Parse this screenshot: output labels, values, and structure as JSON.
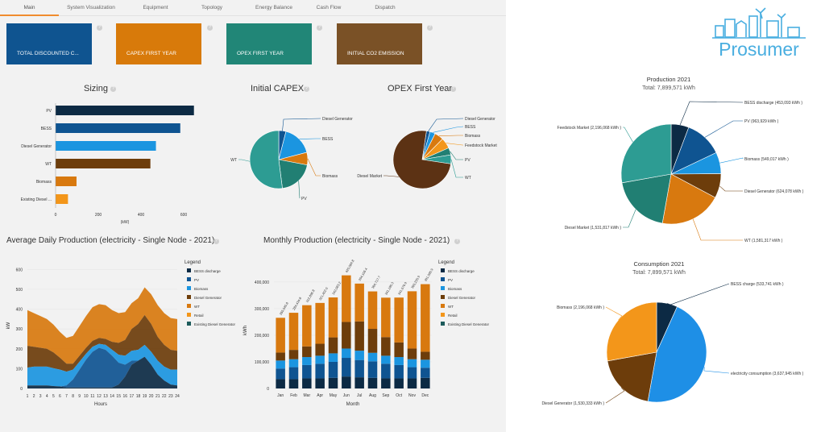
{
  "tabs": [
    "Main",
    "System Visualization",
    "Equipment",
    "Topology",
    "Energy Balance",
    "Cash Flow",
    "Dispatch"
  ],
  "kpis": [
    {
      "label": "TOTAL DISCOUNTED C...",
      "color": "#0f5490"
    },
    {
      "label": "CAPEX FIRST YEAR",
      "color": "#d87a0a"
    },
    {
      "label": "OPEX FIRST YEAR",
      "color": "#218677"
    },
    {
      "label": "INITIAL CO2 EMISSION",
      "color": "#7a5126"
    }
  ],
  "help_glyph": "?",
  "brand": {
    "name": "Prosumer",
    "logo_icon": "city-skyline-logo-icon"
  },
  "colors": {
    "bess": "#0c2a44",
    "pv": "#0f5491",
    "biomass": "#1b95e0",
    "diesel": "#6d3d0b",
    "wt": "#d8790f",
    "retail": "#f3961a",
    "existing_diesel": "#1d5b5b",
    "diesel_market": "#5c3214",
    "feedstock": "#2d9c93",
    "teal": "#217f73",
    "consumption": "#1e8fe6",
    "bess_charge": "#0c2a44"
  },
  "sizing": {
    "title": "Sizing",
    "categories": [
      "PV",
      "BESS",
      "Diesel Generator",
      "WT",
      "Biomass",
      "Existing Diesel ..."
    ],
    "values": [
      648,
      584,
      470,
      444,
      98,
      58
    ],
    "bar_colors": [
      "#0c2a44",
      "#0f5491",
      "#1b95e0",
      "#6d3d0b",
      "#d8790f",
      "#f3961a"
    ],
    "xticks": [
      "0",
      "200",
      "400",
      "600"
    ],
    "xlabel": "(kW)"
  },
  "initial_capex": {
    "title": "Initial CAPEX",
    "slices": [
      {
        "label": "Diesel Generator",
        "value": 4,
        "color": "#0f5491"
      },
      {
        "label": "BESS",
        "value": 17,
        "color": "#1b95e0"
      },
      {
        "label": "Biomass",
        "value": 7,
        "color": "#d8790f"
      },
      {
        "label": "PV",
        "value": 20,
        "color": "#217f73"
      },
      {
        "label": "WT",
        "value": 52,
        "color": "#2d9c93"
      }
    ]
  },
  "opex_first_year": {
    "title": "OPEX First Year",
    "slices": [
      {
        "label": "Diesel Generator",
        "value": 2,
        "color": "#0f5491"
      },
      {
        "label": "BESS",
        "value": 3,
        "color": "#1b95e0"
      },
      {
        "label": "Biomass",
        "value": 5,
        "color": "#d8790f"
      },
      {
        "label": "Feedstock Market",
        "value": 6,
        "color": "#f3961a"
      },
      {
        "label": "PV",
        "value": 4,
        "color": "#217f73"
      },
      {
        "label": "WT",
        "value": 5,
        "color": "#2d9c93"
      },
      {
        "label": "Diesel Market",
        "value": 75,
        "color": "#5c3214"
      }
    ]
  },
  "avg_daily": {
    "title": "Average Daily Production (electricity - Single Node - 2021)",
    "ylabel": "kW",
    "xlabel": "Hours",
    "ylim": [
      0,
      650
    ],
    "yticks": [
      "0",
      "100",
      "200",
      "300",
      "400",
      "500",
      "600"
    ],
    "hours": [
      "1",
      "2",
      "3",
      "4",
      "5",
      "6",
      "7",
      "8",
      "9",
      "10",
      "11",
      "12",
      "13",
      "14",
      "15",
      "16",
      "17",
      "18",
      "19",
      "20",
      "21",
      "22",
      "23",
      "24"
    ],
    "legend_title": "Legend",
    "series": [
      {
        "name": "BESS discharge",
        "color": "#0c2a44",
        "values": [
          15,
          15,
          15,
          15,
          12,
          10,
          5,
          5,
          5,
          5,
          5,
          5,
          5,
          5,
          20,
          60,
          120,
          140,
          160,
          120,
          70,
          40,
          20,
          15
        ]
      },
      {
        "name": "PV",
        "color": "#0f5491",
        "values": [
          0,
          0,
          0,
          0,
          0,
          0,
          10,
          40,
          90,
          140,
          180,
          200,
          190,
          160,
          110,
          60,
          20,
          0,
          0,
          0,
          0,
          0,
          0,
          0
        ]
      },
      {
        "name": "Biomass",
        "color": "#1b95e0",
        "values": [
          90,
          95,
          95,
          95,
          90,
          85,
          70,
          50,
          40,
          30,
          25,
          20,
          25,
          30,
          40,
          45,
          50,
          55,
          60,
          65,
          70,
          70,
          75,
          80
        ]
      },
      {
        "name": "Diesel Generator",
        "color": "#6d3d0b",
        "values": [
          110,
          100,
          95,
          90,
          80,
          60,
          40,
          30,
          30,
          30,
          30,
          30,
          30,
          40,
          60,
          80,
          110,
          130,
          150,
          140,
          120,
          110,
          100,
          95
        ]
      },
      {
        "name": "WT",
        "color": "#d8790f",
        "values": [
          180,
          170,
          160,
          150,
          140,
          130,
          130,
          140,
          150,
          160,
          170,
          170,
          170,
          160,
          150,
          140,
          130,
          130,
          140,
          150,
          160,
          160,
          160,
          160
        ]
      },
      {
        "name": "Retail",
        "color": "#f3961a",
        "values": [
          0,
          0,
          0,
          0,
          0,
          0,
          0,
          0,
          0,
          0,
          0,
          0,
          0,
          0,
          0,
          0,
          0,
          0,
          0,
          0,
          0,
          0,
          0,
          0
        ]
      },
      {
        "name": "Existing Diesel Generator",
        "color": "#1d5b5b",
        "values": [
          0,
          0,
          0,
          0,
          0,
          0,
          0,
          0,
          0,
          0,
          0,
          0,
          0,
          0,
          0,
          0,
          0,
          0,
          0,
          0,
          0,
          0,
          0,
          0
        ]
      }
    ]
  },
  "monthly": {
    "title": "Monthly Production (electricity - Single Node - 2021)",
    "ylabel": "kWh",
    "xlabel": "Month",
    "ylim": [
      0,
      430000
    ],
    "yticks": [
      "0",
      "100,000",
      "200,000",
      "300,000",
      "400,000"
    ],
    "months": [
      "Jan",
      "Feb",
      "Mar",
      "Apr",
      "May",
      "Jun",
      "Jul",
      "Aug",
      "Sep",
      "Oct",
      "Nov",
      "Dec"
    ],
    "totals_labels": [
      "265,545.8",
      "284,434.8",
      "312,896.8",
      "321,402.0",
      "342,083.2",
      "425,084.8",
      "394,106.4",
      "364,717.7",
      "341,180.3",
      "341,576.9",
      "365,235.9",
      "391,965.9"
    ],
    "legend_title": "Legend",
    "series": [
      {
        "name": "BESS discharge",
        "color": "#0c2a44",
        "values": [
          35000,
          35000,
          38000,
          38000,
          40000,
          45000,
          42000,
          40000,
          38000,
          38000,
          38000,
          40000
        ]
      },
      {
        "name": "PV",
        "color": "#0f5491",
        "values": [
          40000,
          45000,
          50000,
          55000,
          60000,
          70000,
          65000,
          62000,
          55000,
          50000,
          42000,
          38000
        ]
      },
      {
        "name": "Biomass",
        "color": "#1b95e0",
        "values": [
          30000,
          30000,
          30000,
          30000,
          32000,
          35000,
          35000,
          32000,
          30000,
          30000,
          30000,
          30000
        ]
      },
      {
        "name": "Diesel Generator",
        "color": "#6d3d0b",
        "values": [
          30000,
          35000,
          40000,
          45000,
          60000,
          100000,
          110000,
          90000,
          70000,
          55000,
          40000,
          30000
        ]
      },
      {
        "name": "WT",
        "color": "#d8790f",
        "values": [
          130545.8,
          139434.8,
          154896.8,
          153402,
          150083.2,
          175084.8,
          142106.4,
          140717.7,
          148180.3,
          168576.9,
          215235.9,
          253965.9
        ]
      },
      {
        "name": "Retail",
        "color": "#f3961a",
        "values": [
          0,
          0,
          0,
          0,
          0,
          0,
          0,
          0,
          0,
          0,
          0,
          0
        ]
      },
      {
        "name": "Existing Diesel Generator",
        "color": "#1d5b5b",
        "values": [
          0,
          0,
          0,
          0,
          0,
          0,
          0,
          0,
          0,
          0,
          0,
          0
        ]
      }
    ]
  },
  "production": {
    "title": "Production 2021",
    "total": "Total: 7,899,571 kWh",
    "slices": [
      {
        "label": "BESS discharge (453,093 kWh )",
        "value": 453093,
        "color": "#0c2a44"
      },
      {
        "label": "PV (963,929 kWh )",
        "value": 963929,
        "color": "#0f5491"
      },
      {
        "label": "Biomass (549,017 kWh )",
        "value": 549017,
        "color": "#1b95e0"
      },
      {
        "label": "Diesel Generator (624,078 kWh )",
        "value": 624078,
        "color": "#6d3d0b"
      },
      {
        "label": "WT (1,581,317 kWh )",
        "value": 1581317,
        "color": "#d8790f"
      },
      {
        "label": "Diesel Market (1,531,817 kWh )",
        "value": 1531817,
        "color": "#217f73"
      },
      {
        "label": "Feedstock Market (2,196,068 kWh )",
        "value": 2196068,
        "color": "#2d9c93"
      }
    ]
  },
  "consumption": {
    "title": "Consumption 2021",
    "total": "Total: 7,899,571 kWh",
    "slices": [
      {
        "label": "BESS charge (533,741 kWh )",
        "value": 533741,
        "color": "#0c2a44"
      },
      {
        "label": "electricity consumption (3,637,945 kWh )",
        "value": 3637945,
        "color": "#1e8fe6"
      },
      {
        "label": "Diesel Generator (1,530,333 kWh )",
        "value": 1530333,
        "color": "#6d3d0b"
      },
      {
        "label": "Biomass (2,196,068 kWh )",
        "value": 2196068,
        "color": "#f3961a"
      }
    ]
  }
}
